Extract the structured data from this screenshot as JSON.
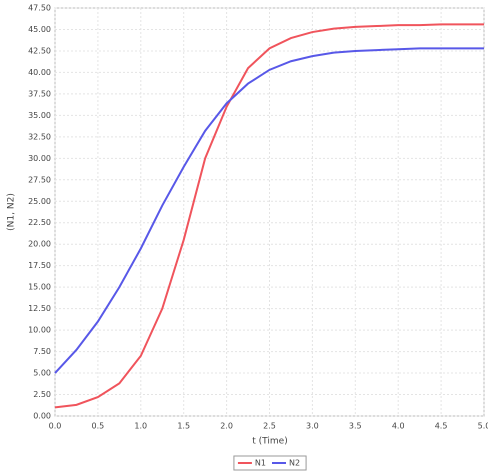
{
  "chart_data": {
    "type": "line",
    "x_label": "t (Time)",
    "y_label": "(N1, N2)",
    "x": [
      0,
      0.25,
      0.5,
      0.75,
      1.0,
      1.25,
      1.5,
      1.75,
      2.0,
      2.25,
      2.5,
      2.75,
      3.0,
      3.25,
      3.5,
      3.75,
      4.0,
      4.25,
      4.5,
      4.75,
      5.0
    ],
    "series": [
      {
        "name": "N1",
        "color": "#f0545c",
        "values": [
          1.0,
          1.3,
          2.2,
          3.8,
          7.0,
          12.5,
          20.5,
          30.0,
          36.0,
          40.5,
          42.8,
          44.0,
          44.7,
          45.1,
          45.3,
          45.4,
          45.5,
          45.5,
          45.6,
          45.6,
          45.6
        ]
      },
      {
        "name": "N2",
        "color": "#5858e8",
        "values": [
          5.0,
          7.7,
          11.0,
          15.0,
          19.5,
          24.5,
          29.0,
          33.2,
          36.4,
          38.7,
          40.3,
          41.3,
          41.9,
          42.3,
          42.5,
          42.6,
          42.7,
          42.8,
          42.8,
          42.8,
          42.8
        ]
      }
    ],
    "xlim": [
      0,
      5
    ],
    "ylim": [
      0,
      47.5
    ],
    "xticks": [
      {
        "value": 0,
        "label": "0.0"
      },
      {
        "value": 0.5,
        "label": "0.5"
      },
      {
        "value": 1,
        "label": "1.0"
      },
      {
        "value": 1.5,
        "label": "1.5"
      },
      {
        "value": 2,
        "label": "2.0"
      },
      {
        "value": 2.5,
        "label": "2.5"
      },
      {
        "value": 3,
        "label": "3.0"
      },
      {
        "value": 3.5,
        "label": "3.5"
      },
      {
        "value": 4,
        "label": "4.0"
      },
      {
        "value": 4.5,
        "label": "4.5"
      },
      {
        "value": 5,
        "label": "5.0"
      }
    ],
    "yticks": [
      {
        "value": 0,
        "label": "0.00"
      },
      {
        "value": 2.5,
        "label": "2.50"
      },
      {
        "value": 5,
        "label": "5.00"
      },
      {
        "value": 7.5,
        "label": "7.50"
      },
      {
        "value": 10,
        "label": "10.00"
      },
      {
        "value": 12.5,
        "label": "12.50"
      },
      {
        "value": 15,
        "label": "15.00"
      },
      {
        "value": 17.5,
        "label": "17.50"
      },
      {
        "value": 20,
        "label": "20.00"
      },
      {
        "value": 22.5,
        "label": "22.50"
      },
      {
        "value": 25,
        "label": "25.00"
      },
      {
        "value": 27.5,
        "label": "27.50"
      },
      {
        "value": 30,
        "label": "30.00"
      },
      {
        "value": 32.5,
        "label": "32.50"
      },
      {
        "value": 35,
        "label": "35.00"
      },
      {
        "value": 37.5,
        "label": "37.50"
      },
      {
        "value": 40,
        "label": "40.00"
      },
      {
        "value": 42.5,
        "label": "42.50"
      },
      {
        "value": 45,
        "label": "45.00"
      },
      {
        "value": 47.5,
        "label": "47.50"
      }
    ],
    "grid": true
  }
}
